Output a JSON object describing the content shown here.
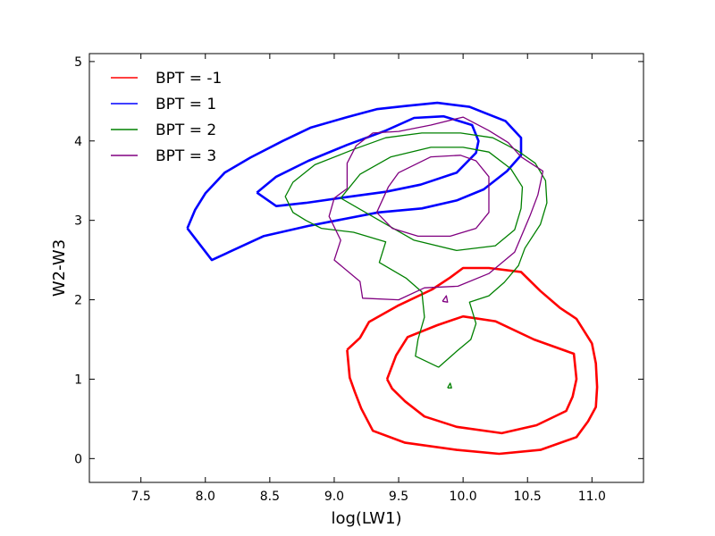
{
  "chart_data": {
    "type": "line",
    "title": "",
    "xlabel": "log(LW1)",
    "ylabel": "W2-W3",
    "xlim": [
      7.1,
      11.4
    ],
    "ylim": [
      -0.3,
      5.1
    ],
    "xticks": [
      7.5,
      8.0,
      8.5,
      9.0,
      9.5,
      10.0,
      10.5,
      11.0
    ],
    "xtick_labels": [
      "7.5",
      "8.0",
      "8.5",
      "9.0",
      "9.5",
      "10.0",
      "10.5",
      "11.0"
    ],
    "yticks": [
      0,
      1,
      2,
      3,
      4,
      5
    ],
    "ytick_labels": [
      "0",
      "1",
      "2",
      "3",
      "4",
      "5"
    ],
    "grid": false,
    "legend_position": "top-left",
    "series": [
      {
        "name": "BPT = -1",
        "color": "#ff0000",
        "contours": [
          {
            "points": [
              [
                9.1,
                1.37
              ],
              [
                9.2,
                1.52
              ],
              [
                9.27,
                1.72
              ],
              [
                9.5,
                1.93
              ],
              [
                9.76,
                2.13
              ],
              [
                9.9,
                2.28
              ],
              [
                10.0,
                2.4
              ],
              [
                10.2,
                2.4
              ],
              [
                10.45,
                2.35
              ],
              [
                10.6,
                2.11
              ],
              [
                10.75,
                1.9
              ],
              [
                10.88,
                1.76
              ],
              [
                11.0,
                1.45
              ],
              [
                11.03,
                1.2
              ],
              [
                11.04,
                0.9
              ],
              [
                11.03,
                0.65
              ],
              [
                10.97,
                0.47
              ],
              [
                10.88,
                0.27
              ],
              [
                10.6,
                0.11
              ],
              [
                10.28,
                0.06
              ],
              [
                9.95,
                0.11
              ],
              [
                9.55,
                0.2
              ],
              [
                9.3,
                0.35
              ],
              [
                9.21,
                0.63
              ],
              [
                9.16,
                0.84
              ],
              [
                9.12,
                1.02
              ],
              [
                9.11,
                1.2
              ],
              [
                9.1,
                1.37
              ]
            ],
            "width": 2.6
          },
          {
            "points": [
              [
                9.41,
                1.0
              ],
              [
                9.48,
                1.3
              ],
              [
                9.57,
                1.53
              ],
              [
                9.8,
                1.68
              ],
              [
                10.0,
                1.79
              ],
              [
                10.25,
                1.73
              ],
              [
                10.55,
                1.5
              ],
              [
                10.86,
                1.32
              ],
              [
                10.88,
                1.0
              ],
              [
                10.85,
                0.78
              ],
              [
                10.8,
                0.6
              ],
              [
                10.57,
                0.42
              ],
              [
                10.3,
                0.32
              ],
              [
                9.95,
                0.4
              ],
              [
                9.7,
                0.53
              ],
              [
                9.55,
                0.72
              ],
              [
                9.45,
                0.88
              ],
              [
                9.41,
                1.0
              ]
            ],
            "width": 2.6
          }
        ]
      },
      {
        "name": "BPT = 1",
        "color": "#0000ff",
        "contours": [
          {
            "points": [
              [
                7.86,
                2.9
              ],
              [
                7.92,
                3.13
              ],
              [
                8.0,
                3.34
              ],
              [
                8.15,
                3.6
              ],
              [
                8.35,
                3.79
              ],
              [
                8.6,
                4.0
              ],
              [
                8.82,
                4.17
              ],
              [
                9.1,
                4.3
              ],
              [
                9.33,
                4.4
              ],
              [
                9.55,
                4.44
              ],
              [
                9.8,
                4.48
              ],
              [
                10.05,
                4.43
              ],
              [
                10.33,
                4.25
              ],
              [
                10.45,
                4.04
              ],
              [
                10.45,
                3.82
              ],
              [
                10.34,
                3.62
              ],
              [
                10.16,
                3.39
              ],
              [
                9.95,
                3.25
              ],
              [
                9.68,
                3.15
              ],
              [
                9.34,
                3.1
              ],
              [
                8.8,
                2.93
              ],
              [
                8.45,
                2.8
              ],
              [
                8.05,
                2.5
              ],
              [
                7.86,
                2.9
              ]
            ],
            "width": 2.6
          },
          {
            "points": [
              [
                8.4,
                3.35
              ],
              [
                8.55,
                3.55
              ],
              [
                8.8,
                3.75
              ],
              [
                9.1,
                3.95
              ],
              [
                9.4,
                4.13
              ],
              [
                9.62,
                4.29
              ],
              [
                9.85,
                4.31
              ],
              [
                10.07,
                4.2
              ],
              [
                10.12,
                4.0
              ],
              [
                10.1,
                3.85
              ],
              [
                9.95,
                3.6
              ],
              [
                9.67,
                3.45
              ],
              [
                9.4,
                3.36
              ],
              [
                9.08,
                3.29
              ],
              [
                8.78,
                3.22
              ],
              [
                8.55,
                3.18
              ],
              [
                8.4,
                3.35
              ]
            ],
            "width": 2.6
          }
        ]
      },
      {
        "name": "BPT = 2",
        "color": "#008000",
        "contours": [
          {
            "points": [
              [
                9.81,
                1.15
              ],
              [
                9.63,
                1.29
              ],
              [
                9.65,
                1.5
              ],
              [
                9.7,
                1.78
              ],
              [
                9.68,
                2.1
              ],
              [
                9.56,
                2.27
              ],
              [
                9.35,
                2.47
              ],
              [
                9.4,
                2.73
              ],
              [
                9.15,
                2.85
              ],
              [
                8.9,
                2.9
              ],
              [
                8.78,
                3.0
              ],
              [
                8.68,
                3.1
              ],
              [
                8.62,
                3.3
              ],
              [
                8.68,
                3.48
              ],
              [
                8.85,
                3.7
              ],
              [
                9.16,
                3.9
              ],
              [
                9.4,
                4.04
              ],
              [
                9.68,
                4.1
              ],
              [
                9.98,
                4.1
              ],
              [
                10.23,
                4.04
              ],
              [
                10.42,
                3.88
              ],
              [
                10.56,
                3.72
              ],
              [
                10.64,
                3.5
              ],
              [
                10.65,
                3.22
              ],
              [
                10.6,
                2.95
              ],
              [
                10.48,
                2.65
              ],
              [
                10.43,
                2.43
              ],
              [
                10.32,
                2.22
              ],
              [
                10.2,
                2.05
              ],
              [
                10.05,
                1.97
              ],
              [
                10.1,
                1.7
              ],
              [
                10.06,
                1.5
              ],
              [
                9.95,
                1.35
              ],
              [
                9.81,
                1.15
              ]
            ],
            "width": 1.3
          },
          {
            "points": [
              [
                9.05,
                3.28
              ],
              [
                9.2,
                3.58
              ],
              [
                9.44,
                3.8
              ],
              [
                9.75,
                3.92
              ],
              [
                10.0,
                3.92
              ],
              [
                10.2,
                3.86
              ],
              [
                10.37,
                3.65
              ],
              [
                10.46,
                3.42
              ],
              [
                10.45,
                3.15
              ],
              [
                10.4,
                2.88
              ],
              [
                10.25,
                2.68
              ],
              [
                9.95,
                2.62
              ],
              [
                9.62,
                2.75
              ],
              [
                9.35,
                3.0
              ],
              [
                9.05,
                3.28
              ]
            ],
            "width": 1.3
          },
          {
            "points": [
              [
                9.88,
                0.89
              ],
              [
                9.91,
                0.89
              ],
              [
                9.9,
                0.95
              ],
              [
                9.88,
                0.89
              ]
            ],
            "width": 1.3
          }
        ]
      },
      {
        "name": "BPT = 3",
        "color": "#800080",
        "contours": [
          {
            "points": [
              [
                9.1,
                3.4
              ],
              [
                9.0,
                3.28
              ],
              [
                8.96,
                3.05
              ],
              [
                9.05,
                2.75
              ],
              [
                9.0,
                2.5
              ],
              [
                9.2,
                2.23
              ],
              [
                9.22,
                2.02
              ],
              [
                9.5,
                2.0
              ],
              [
                9.7,
                2.15
              ],
              [
                9.96,
                2.17
              ],
              [
                10.2,
                2.33
              ],
              [
                10.4,
                2.6
              ],
              [
                10.52,
                3.06
              ],
              [
                10.58,
                3.32
              ],
              [
                10.62,
                3.62
              ],
              [
                10.45,
                3.8
              ],
              [
                10.35,
                3.98
              ],
              [
                10.2,
                4.13
              ],
              [
                10.0,
                4.3
              ],
              [
                9.75,
                4.2
              ],
              [
                9.5,
                4.12
              ],
              [
                9.3,
                4.1
              ],
              [
                9.17,
                3.94
              ],
              [
                9.1,
                3.72
              ],
              [
                9.1,
                3.4
              ]
            ],
            "width": 1.3
          },
          {
            "points": [
              [
                9.33,
                3.1
              ],
              [
                9.42,
                3.42
              ],
              [
                9.5,
                3.6
              ],
              [
                9.75,
                3.8
              ],
              [
                9.98,
                3.82
              ],
              [
                10.1,
                3.75
              ],
              [
                10.2,
                3.55
              ],
              [
                10.2,
                3.3
              ],
              [
                10.2,
                3.1
              ],
              [
                10.1,
                2.9
              ],
              [
                9.9,
                2.8
              ],
              [
                9.65,
                2.8
              ],
              [
                9.45,
                2.9
              ],
              [
                9.33,
                3.1
              ]
            ],
            "width": 1.3
          },
          {
            "points": [
              [
                9.84,
                1.98
              ],
              [
                9.87,
                2.05
              ],
              [
                9.88,
                1.97
              ],
              [
                9.84,
                1.98
              ]
            ],
            "width": 1.3
          }
        ]
      }
    ]
  }
}
